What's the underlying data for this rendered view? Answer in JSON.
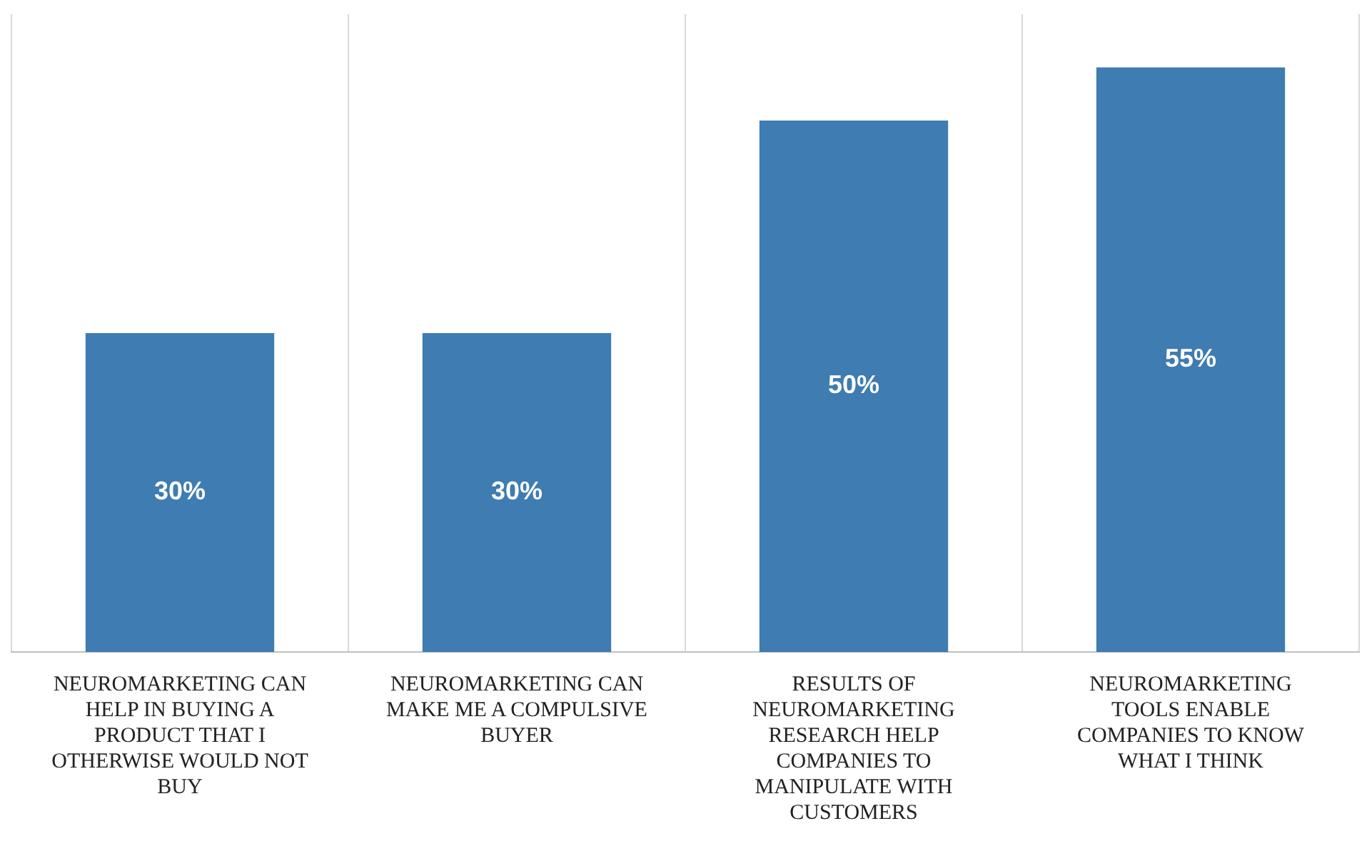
{
  "chart_data": {
    "type": "bar",
    "categories": [
      "NEUROMARKETING CAN HELP IN BUYING A PRODUCT THAT I OTHERWISE WOULD NOT BUY",
      "NEUROMARKETING CAN MAKE ME A COMPULSIVE BUYER",
      "RESULTS OF NEUROMARKETING RESEARCH HELP COMPANIES TO MANIPULATE WITH CUSTOMERS",
      "NEUROMARKETING TOOLS ENABLE COMPANIES TO KNOW WHAT I THINK"
    ],
    "values": [
      30,
      30,
      50,
      55
    ],
    "value_labels": [
      "30%",
      "30%",
      "50%",
      "55%"
    ],
    "color": "#3e7cb1",
    "ylim": [
      0,
      60
    ],
    "grid": "x",
    "legend": false,
    "tick_labels": "x"
  }
}
